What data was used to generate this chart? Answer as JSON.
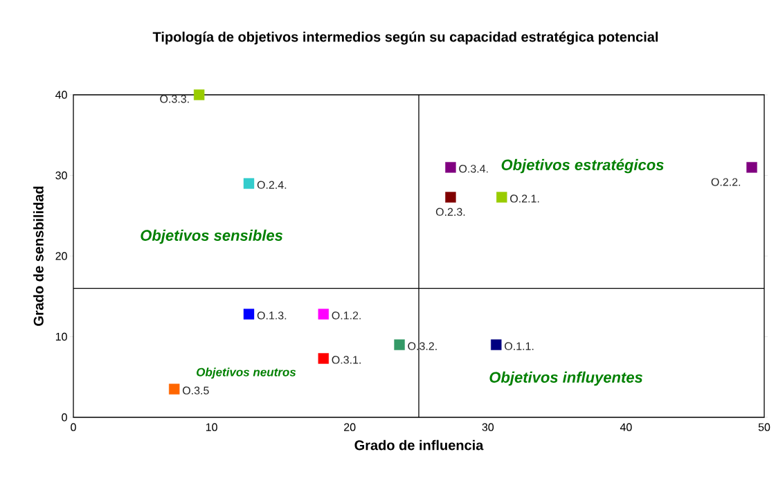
{
  "chart_data": {
    "type": "scatter",
    "title": "Tipología de objetivos intermedios según su capacidad estratégica potencial",
    "xlabel": "Grado de influencia",
    "ylabel": "Grado de sensbilidad",
    "xlim": [
      0,
      50
    ],
    "ylim": [
      0,
      40
    ],
    "xticks": [
      0,
      10,
      20,
      30,
      40,
      50
    ],
    "yticks": [
      0,
      10,
      20,
      30,
      40
    ],
    "grid": false,
    "marker": "square",
    "ref_lines": [
      {
        "axis": "y",
        "value": 16,
        "color": "#000000"
      },
      {
        "axis": "x",
        "value": 25,
        "color": "#000000"
      }
    ],
    "annotations": [
      "Objetivos sensibles",
      "Objetivos estratégicos",
      "Objetivos neutros",
      "Objetivos influyentes"
    ],
    "series": [
      {
        "name": "O.3.3.",
        "color": "#99cc00",
        "x": [
          9.1
        ],
        "values": [
          40
        ]
      },
      {
        "name": "O.2.4.",
        "color": "#33cccc",
        "x": [
          12.7
        ],
        "values": [
          29
        ]
      },
      {
        "name": "O.3.4.",
        "color": "#800080",
        "x": [
          27.3
        ],
        "values": [
          31
        ]
      },
      {
        "name": "O.2.3.",
        "color": "#800000",
        "x": [
          27.3
        ],
        "values": [
          27.3
        ]
      },
      {
        "name": "O.2.1.",
        "color": "#99cc00",
        "x": [
          31
        ],
        "values": [
          27.3
        ]
      },
      {
        "name": "O.2.2.",
        "color": "#800080",
        "x": [
          49.1
        ],
        "values": [
          31
        ]
      },
      {
        "name": "O.1.3.",
        "color": "#0000ff",
        "x": [
          12.7
        ],
        "values": [
          12.8
        ]
      },
      {
        "name": "O.1.2.",
        "color": "#ff00ff",
        "x": [
          18.1
        ],
        "values": [
          12.8
        ]
      },
      {
        "name": "O.3.2.",
        "color": "#339966",
        "x": [
          23.6
        ],
        "values": [
          9
        ]
      },
      {
        "name": "O.1.1.",
        "color": "#000080",
        "x": [
          30.6
        ],
        "values": [
          9
        ]
      },
      {
        "name": "O.3.1.",
        "color": "#ff0000",
        "x": [
          18.1
        ],
        "values": [
          7.3
        ]
      },
      {
        "name": "O.3.5",
        "color": "#ff6600",
        "x": [
          7.3
        ],
        "values": [
          3.5
        ]
      }
    ]
  }
}
